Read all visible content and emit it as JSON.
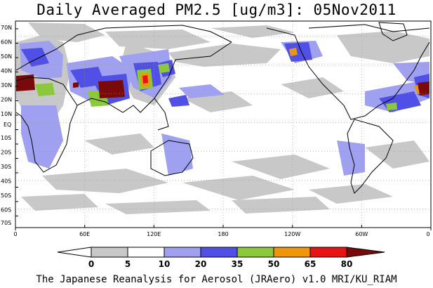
{
  "title": "Daily Averaged PM2.5 [ug/m3]: 05Nov2011",
  "credit": "The Japanese Reanalysis for Aerosol (JRAero) v1.0 MRI/KU_RIAM",
  "lat_labels": [
    "70N",
    "60N",
    "50N",
    "40N",
    "30N",
    "20N",
    "10N",
    "EQ",
    "10S",
    "20S",
    "30S",
    "40S",
    "50S",
    "60S",
    "70S"
  ],
  "lon_labels": [
    "0",
    "60E",
    "120E",
    "180",
    "120W",
    "60W",
    "0"
  ],
  "colorbar": {
    "levels": [
      "0",
      "5",
      "10",
      "20",
      "35",
      "50",
      "65",
      "80"
    ],
    "colors": [
      "#ffffff",
      "#c8c8c8",
      "#a0a0f0",
      "#5050e6",
      "#8cc83c",
      "#f0960a",
      "#e61414",
      "#7a0a0a"
    ]
  }
}
